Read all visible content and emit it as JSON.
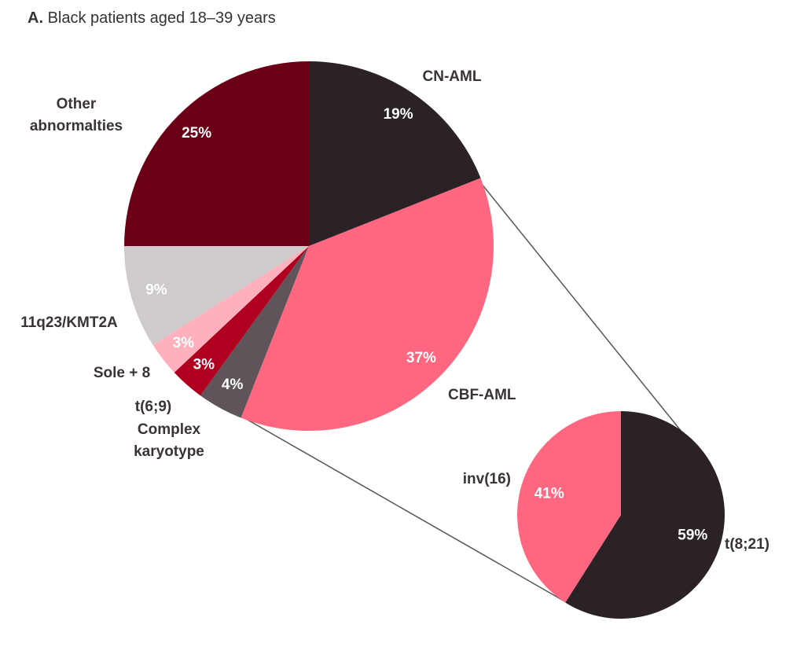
{
  "panel": "A.",
  "title": "Black patients aged 18–39 years",
  "chart_data": [
    {
      "type": "pie",
      "categories": [
        "CN-AML",
        "CBF-AML",
        "Complex karyotype",
        "t(6;9)",
        "Sole + 8",
        "11q23/KMT2A",
        "Other abnormalties"
      ],
      "values": [
        19,
        37,
        4,
        3,
        3,
        9,
        25
      ],
      "value_labels": [
        "19%",
        "37%",
        "4%",
        "3%",
        "3%",
        "9%",
        "25%"
      ],
      "colors": [
        "#2a2224",
        "#ff6781",
        "#5e5459",
        "#b0001f",
        "#ffb0bd",
        "#cfcacc",
        "#690015"
      ]
    },
    {
      "type": "pie",
      "categories": [
        "t(8;21)",
        "inv(16)"
      ],
      "values": [
        59,
        41
      ],
      "value_labels": [
        "59%",
        "41%"
      ],
      "colors": [
        "#2a2224",
        "#ff6781"
      ]
    }
  ]
}
